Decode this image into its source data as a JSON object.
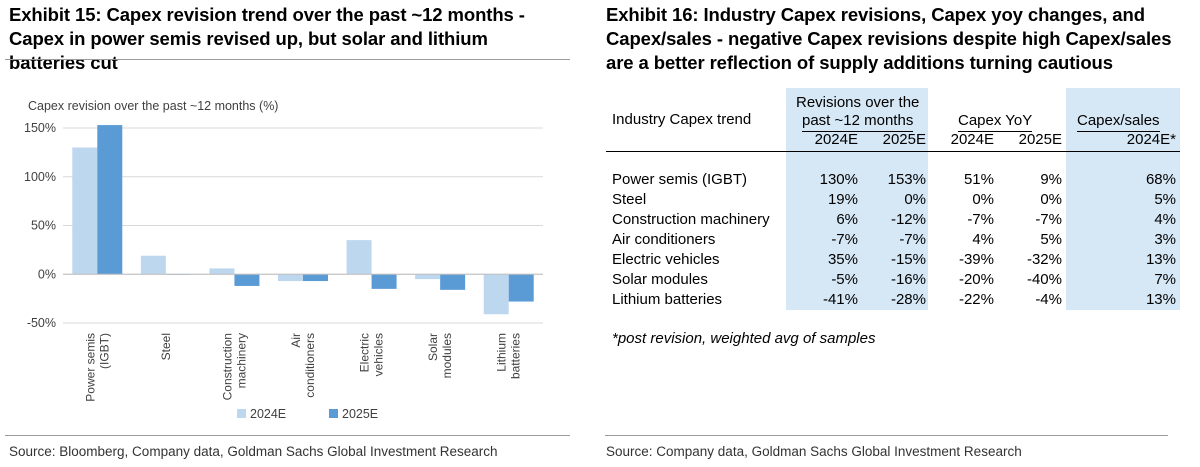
{
  "left_panel": {
    "title": "Exhibit 15: Capex revision trend over the past ~12 months  - Capex in power semis revised up, but solar and lithium batteries cut",
    "source": "Source: Bloomberg, Company data, Goldman Sachs Global Investment Research"
  },
  "chart_data": {
    "type": "bar",
    "title": "Capex revision over the past ~12 months (%)",
    "categories": [
      "Power semis (IGBT)",
      "Steel",
      "Construction machinery",
      "Air conditioners",
      "Electric vehicles",
      "Solar modules",
      "Lithium batteries"
    ],
    "category_tick_lines": [
      [
        "Power semis",
        "(IGBT)"
      ],
      [
        "Steel"
      ],
      [
        "Construction",
        "machinery"
      ],
      [
        "Air",
        "conditioners"
      ],
      [
        "Electric",
        "vehicles"
      ],
      [
        "Solar",
        "modules"
      ],
      [
        "Lithium",
        "batteries"
      ]
    ],
    "series": [
      {
        "name": "2024E",
        "color": "#bdd7ee",
        "values": [
          130,
          19,
          6,
          -7,
          35,
          -5,
          -41
        ]
      },
      {
        "name": "2025E",
        "color": "#5b9bd5",
        "values": [
          153,
          0,
          -12,
          -7,
          -15,
          -16,
          -28
        ]
      }
    ],
    "ylim": [
      -50,
      150
    ],
    "yticks": [
      150,
      100,
      50,
      0,
      -50
    ],
    "ytick_labels": [
      "150%",
      "100%",
      "50%",
      "0%",
      "-50%"
    ],
    "grid": true,
    "legend": "bottom"
  },
  "right_panel": {
    "title": "Exhibit 16: Industry Capex revisions, Capex yoy changes, and Capex/sales - negative Capex revisions despite high Capex/sales are a better reflection of supply additions turning cautious",
    "source": "Source: Company data, Goldman Sachs Global Investment Research",
    "footnote": "*post revision, weighted avg of samples",
    "table": {
      "row_header": "Industry Capex trend",
      "group_revisions_line1": "Revisions over the",
      "group_revisions_line2": "past ~12 months",
      "group_yoy": "Capex YoY",
      "group_sales": "Capex/sales",
      "sub_headers": [
        "2024E",
        "2025E",
        "2024E",
        "2025E",
        "2024E*"
      ],
      "rows": [
        {
          "label": "Power semis (IGBT)",
          "values": [
            "130%",
            "153%",
            "51%",
            "9%",
            "68%"
          ]
        },
        {
          "label": "Steel",
          "values": [
            "19%",
            "0%",
            "0%",
            "0%",
            "5%"
          ]
        },
        {
          "label": "Construction machinery",
          "values": [
            "6%",
            "-12%",
            "-7%",
            "-7%",
            "4%"
          ]
        },
        {
          "label": "Air conditioners",
          "values": [
            "-7%",
            "-7%",
            "4%",
            "5%",
            "3%"
          ]
        },
        {
          "label": "Electric vehicles",
          "values": [
            "35%",
            "-15%",
            "-39%",
            "-32%",
            "13%"
          ]
        },
        {
          "label": "Solar modules",
          "values": [
            "-5%",
            "-16%",
            "-20%",
            "-40%",
            "7%"
          ]
        },
        {
          "label": "Lithium batteries",
          "values": [
            "-41%",
            "-28%",
            "-22%",
            "-4%",
            "13%"
          ]
        }
      ]
    }
  }
}
